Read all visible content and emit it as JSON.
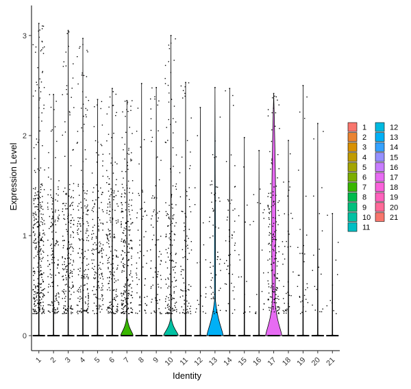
{
  "chart_data": {
    "type": "violin",
    "xlabel": "Identity",
    "ylabel": "Expression Level",
    "ylim": [
      -0.15,
      3.3
    ],
    "yticks": [
      0,
      1,
      2,
      3
    ],
    "categories": [
      "1",
      "2",
      "3",
      "4",
      "5",
      "6",
      "7",
      "8",
      "9",
      "10",
      "11",
      "12",
      "13",
      "14",
      "15",
      "16",
      "17",
      "18",
      "19",
      "20",
      "21"
    ],
    "colors": [
      "#F8766D",
      "#EA8331",
      "#D89000",
      "#C09B00",
      "#A3A500",
      "#7CAE00",
      "#39B600",
      "#00BB4E",
      "#00BF7D",
      "#00C1A3",
      "#00BFC4",
      "#00BAE0",
      "#00B0F6",
      "#35A2FF",
      "#9590FF",
      "#C77CFF",
      "#E76BF3",
      "#FA62DB",
      "#FF62BC",
      "#FF6A98",
      "#F8766D"
    ],
    "max_values": [
      3.12,
      2.41,
      3.05,
      2.97,
      2.36,
      2.47,
      2.35,
      2.52,
      2.48,
      3.0,
      2.53,
      2.28,
      2.48,
      2.47,
      1.98,
      1.85,
      2.42,
      1.95,
      2.5,
      2.12,
      1.22
    ],
    "point_density": [
      320,
      150,
      200,
      180,
      160,
      190,
      240,
      60,
      80,
      160,
      90,
      20,
      60,
      50,
      15,
      18,
      160,
      40,
      30,
      18,
      10
    ],
    "violin_zero_halfwidth": [
      0,
      0,
      0,
      0,
      0,
      0,
      0.42,
      0,
      0,
      0.5,
      0,
      0,
      0.55,
      0,
      0,
      0,
      0.55,
      0,
      0,
      0,
      0
    ],
    "violin_nonzero": [
      false,
      false,
      false,
      false,
      false,
      false,
      false,
      false,
      false,
      false,
      false,
      false,
      true,
      false,
      false,
      false,
      true,
      false,
      false,
      false,
      false
    ],
    "legend_columns": [
      [
        "1",
        "2",
        "3",
        "4",
        "5",
        "6",
        "7",
        "8",
        "9",
        "10",
        "11"
      ],
      [
        "12",
        "13",
        "14",
        "15",
        "16",
        "17",
        "18",
        "19",
        "20",
        "21"
      ]
    ]
  }
}
